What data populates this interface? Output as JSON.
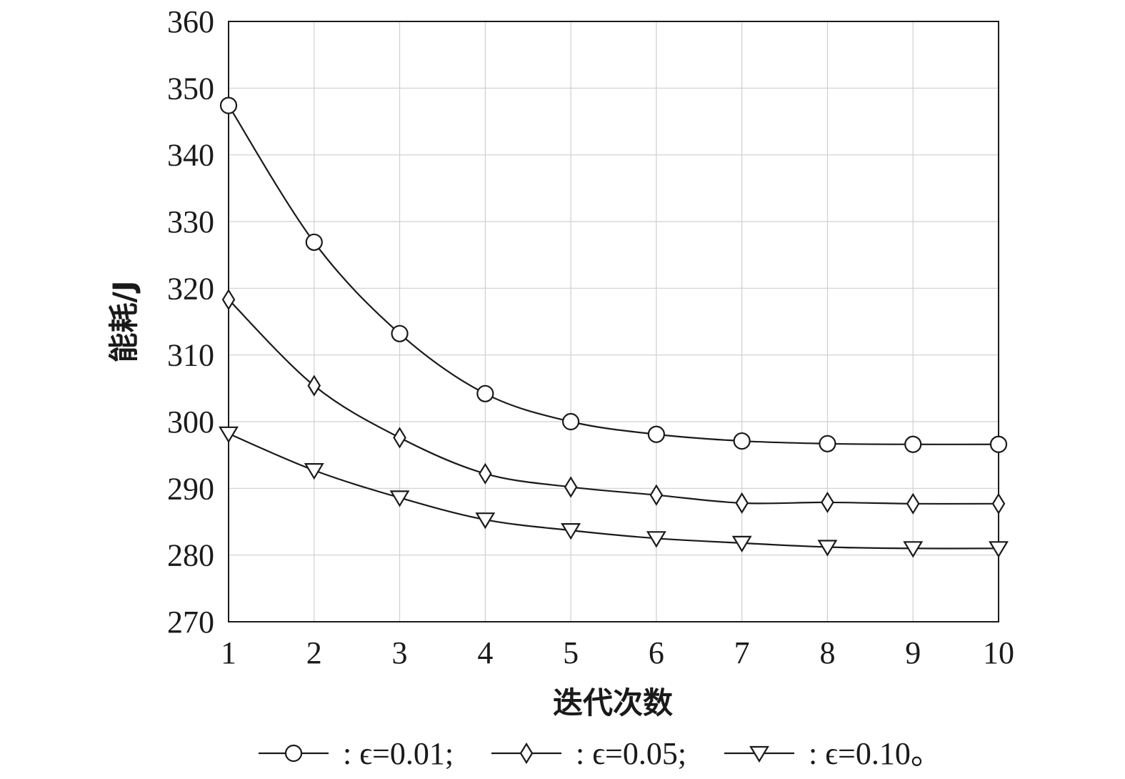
{
  "chart_data": {
    "type": "line",
    "xlabel": "迭代次数",
    "ylabel": "能耗/J",
    "xlim": [
      1,
      10
    ],
    "ylim": [
      270,
      360
    ],
    "x_ticks": [
      1,
      2,
      3,
      4,
      5,
      6,
      7,
      8,
      9,
      10
    ],
    "y_ticks": [
      270,
      280,
      290,
      300,
      310,
      320,
      330,
      340,
      350,
      360
    ],
    "grid": true,
    "legend_position": "bottom",
    "x": [
      1,
      2,
      3,
      4,
      5,
      6,
      7,
      8,
      9,
      10
    ],
    "series": [
      {
        "legend_text": ": ϵ=0.01;",
        "marker": "circle",
        "values": [
          347.4,
          326.9,
          313.2,
          304.2,
          300.0,
          298.1,
          297.1,
          296.7,
          296.6,
          296.6
        ]
      },
      {
        "legend_text": ": ϵ=0.05;",
        "marker": "diamond",
        "values": [
          318.3,
          305.4,
          297.6,
          292.2,
          290.2,
          289.0,
          287.8,
          287.9,
          287.7,
          287.7
        ]
      },
      {
        "legend_text": ": ϵ=0.10。",
        "marker": "triangle-down",
        "values": [
          298.2,
          292.7,
          288.6,
          285.3,
          283.7,
          282.5,
          281.8,
          281.2,
          281.0,
          281.0
        ]
      }
    ]
  }
}
